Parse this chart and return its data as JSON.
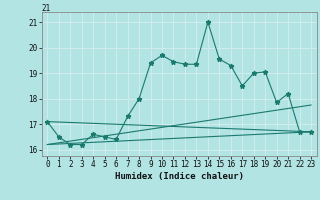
{
  "xlabel": "Humidex (Indice chaleur)",
  "background_color": "#b2e4e4",
  "grid_color": "#d0ecec",
  "line_color": "#1a7a6e",
  "xlim": [
    -0.5,
    23.5
  ],
  "ylim": [
    15.75,
    21.4
  ],
  "yticks": [
    16,
    17,
    18,
    19,
    20,
    21
  ],
  "xticks": [
    0,
    1,
    2,
    3,
    4,
    5,
    6,
    7,
    8,
    9,
    10,
    11,
    12,
    13,
    14,
    15,
    16,
    17,
    18,
    19,
    20,
    21,
    22,
    23
  ],
  "series_main": {
    "x": [
      0,
      1,
      2,
      3,
      4,
      5,
      6,
      7,
      8,
      9,
      10,
      11,
      12,
      13,
      14,
      15,
      16,
      17,
      18,
      19,
      20,
      21,
      22,
      23
    ],
    "y": [
      17.1,
      16.5,
      16.2,
      16.2,
      16.6,
      16.5,
      16.4,
      17.3,
      18.0,
      19.4,
      19.7,
      19.45,
      19.35,
      19.35,
      21.0,
      19.55,
      19.3,
      18.5,
      19.0,
      19.05,
      17.85,
      18.2,
      16.7,
      16.7
    ]
  },
  "line_upper": {
    "x": [
      0,
      23
    ],
    "y": [
      17.1,
      16.7
    ]
  },
  "line_lower": {
    "x": [
      0,
      23
    ],
    "y": [
      16.2,
      16.7
    ]
  },
  "line_mid": {
    "x": [
      0,
      23
    ],
    "y": [
      16.2,
      17.75
    ]
  }
}
